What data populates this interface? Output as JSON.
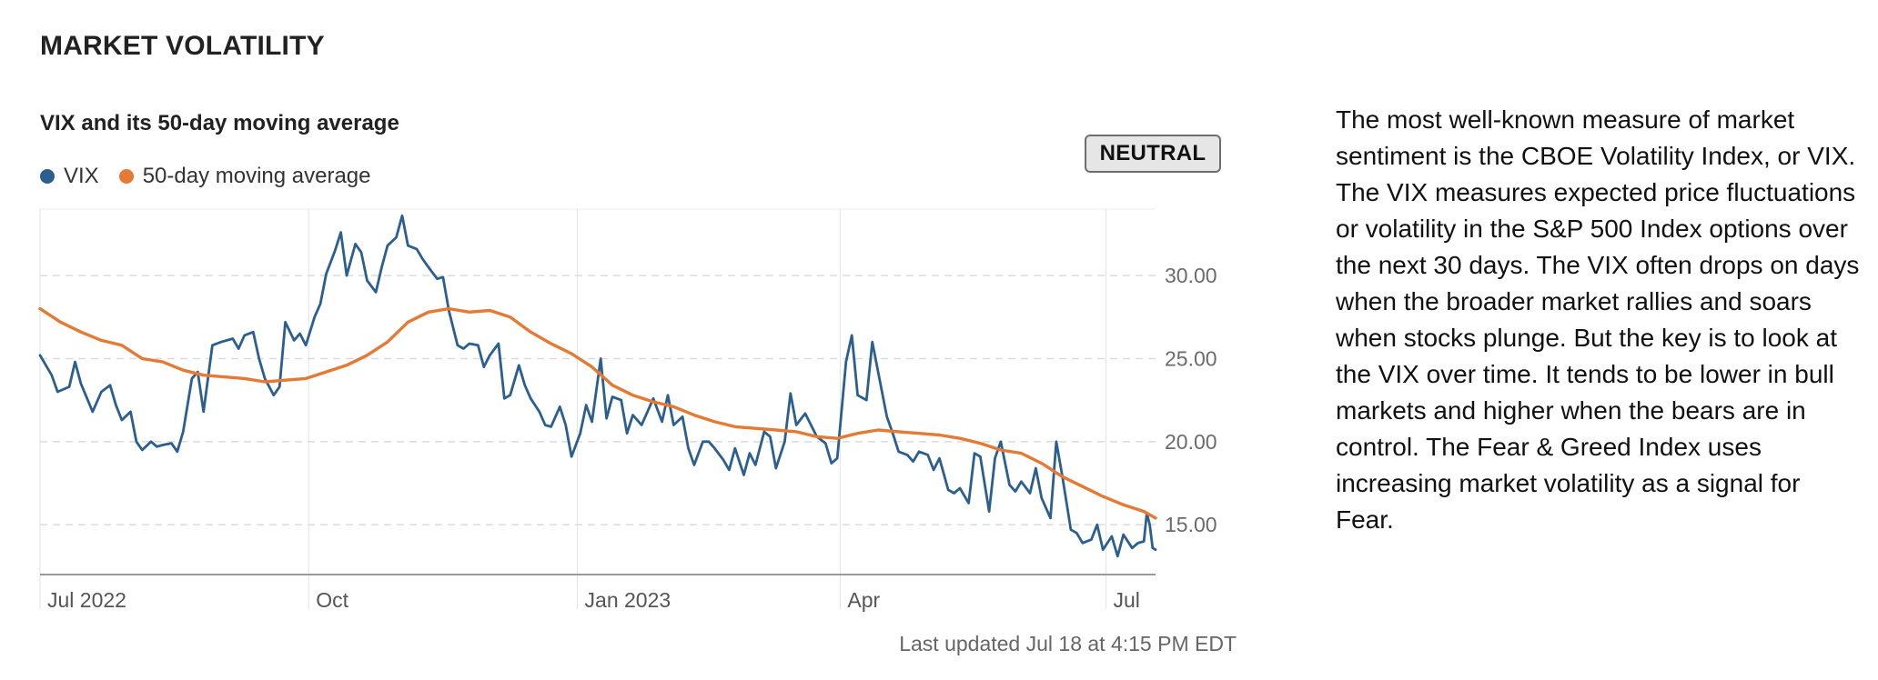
{
  "header": {
    "title": "MARKET VOLATILITY"
  },
  "chart_header": {
    "title": "VIX and its 50-day moving average",
    "badge": "NEUTRAL"
  },
  "legend": {
    "items": [
      {
        "label": "VIX",
        "color": "#2b5f8f"
      },
      {
        "label": "50-day moving average",
        "color": "#e47a34"
      }
    ]
  },
  "footer": {
    "updated": "Last updated Jul 18 at 4:15 PM EDT"
  },
  "description": "The most well-known measure of market sentiment is the CBOE Volatility Index, or VIX. The VIX measures expected price fluctuations or volatility in the S&P 500 Index options over the next 30 days. The VIX often drops on days when the broader market rallies and soars when stocks plunge. But the key is to look at the VIX over time. It tends to be lower in bull markets and higher when the bears are in control. The Fear & Greed Index uses increasing market volatility as a signal for Fear.",
  "chart_data": {
    "type": "line",
    "title": "VIX and its 50-day moving average",
    "x_ticks": [
      "Jul 2022",
      "Oct",
      "Jan 2023",
      "Apr",
      "Jul"
    ],
    "y_ticks": [
      "30.00",
      "25.00",
      "20.00",
      "15.00"
    ],
    "xlim": [
      "2022-07-01",
      "2023-07-18"
    ],
    "ylim": [
      12,
      34
    ],
    "grid": true,
    "legend_position": "top-left",
    "series": [
      {
        "name": "VIX",
        "color": "#2b5f8f",
        "points": [
          [
            "2022-07-01",
            25.2
          ],
          [
            "2022-07-05",
            24.0
          ],
          [
            "2022-07-07",
            23.0
          ],
          [
            "2022-07-11",
            23.3
          ],
          [
            "2022-07-13",
            24.8
          ],
          [
            "2022-07-15",
            23.5
          ],
          [
            "2022-07-19",
            21.8
          ],
          [
            "2022-07-22",
            23.0
          ],
          [
            "2022-07-25",
            23.4
          ],
          [
            "2022-07-27",
            22.2
          ],
          [
            "2022-07-29",
            21.3
          ],
          [
            "2022-08-01",
            21.8
          ],
          [
            "2022-08-03",
            20.0
          ],
          [
            "2022-08-05",
            19.5
          ],
          [
            "2022-08-08",
            20.0
          ],
          [
            "2022-08-10",
            19.7
          ],
          [
            "2022-08-12",
            19.8
          ],
          [
            "2022-08-15",
            19.9
          ],
          [
            "2022-08-17",
            19.4
          ],
          [
            "2022-08-19",
            20.6
          ],
          [
            "2022-08-22",
            23.8
          ],
          [
            "2022-08-24",
            24.2
          ],
          [
            "2022-08-26",
            21.8
          ],
          [
            "2022-08-29",
            25.8
          ],
          [
            "2022-09-01",
            26.0
          ],
          [
            "2022-09-05",
            26.2
          ],
          [
            "2022-09-07",
            25.6
          ],
          [
            "2022-09-09",
            26.4
          ],
          [
            "2022-09-12",
            26.6
          ],
          [
            "2022-09-14",
            25.0
          ],
          [
            "2022-09-16",
            23.8
          ],
          [
            "2022-09-19",
            22.8
          ],
          [
            "2022-09-21",
            23.3
          ],
          [
            "2022-09-23",
            27.2
          ],
          [
            "2022-09-26",
            26.1
          ],
          [
            "2022-09-28",
            26.5
          ],
          [
            "2022-09-30",
            25.8
          ],
          [
            "2022-10-03",
            27.5
          ],
          [
            "2022-10-05",
            28.3
          ],
          [
            "2022-10-07",
            30.1
          ],
          [
            "2022-10-10",
            31.5
          ],
          [
            "2022-10-12",
            32.6
          ],
          [
            "2022-10-14",
            30.0
          ],
          [
            "2022-10-17",
            31.9
          ],
          [
            "2022-10-19",
            31.4
          ],
          [
            "2022-10-21",
            29.7
          ],
          [
            "2022-10-24",
            29.0
          ],
          [
            "2022-10-26",
            30.5
          ],
          [
            "2022-10-28",
            31.8
          ],
          [
            "2022-10-31",
            32.3
          ],
          [
            "2022-11-02",
            33.6
          ],
          [
            "2022-11-04",
            31.8
          ],
          [
            "2022-11-07",
            31.6
          ],
          [
            "2022-11-09",
            31.0
          ],
          [
            "2022-11-11",
            30.5
          ],
          [
            "2022-11-14",
            29.8
          ],
          [
            "2022-11-16",
            29.9
          ],
          [
            "2022-11-18",
            27.9
          ],
          [
            "2022-11-21",
            25.8
          ],
          [
            "2022-11-23",
            25.6
          ],
          [
            "2022-11-25",
            25.9
          ],
          [
            "2022-11-28",
            25.8
          ],
          [
            "2022-11-30",
            24.5
          ],
          [
            "2022-12-02",
            25.2
          ],
          [
            "2022-12-05",
            25.9
          ],
          [
            "2022-12-07",
            22.6
          ],
          [
            "2022-12-09",
            22.8
          ],
          [
            "2022-12-12",
            24.6
          ],
          [
            "2022-12-14",
            23.4
          ],
          [
            "2022-12-16",
            22.6
          ],
          [
            "2022-12-19",
            21.8
          ],
          [
            "2022-12-21",
            21.0
          ],
          [
            "2022-12-23",
            20.9
          ],
          [
            "2022-12-26",
            22.1
          ],
          [
            "2022-12-28",
            21.0
          ],
          [
            "2022-12-30",
            19.1
          ],
          [
            "2023-01-02",
            20.5
          ],
          [
            "2023-01-04",
            22.2
          ],
          [
            "2023-01-06",
            21.2
          ],
          [
            "2023-01-09",
            25.0
          ],
          [
            "2023-01-11",
            21.4
          ],
          [
            "2023-01-13",
            22.7
          ],
          [
            "2023-01-16",
            22.5
          ],
          [
            "2023-01-18",
            20.5
          ],
          [
            "2023-01-20",
            21.6
          ],
          [
            "2023-01-23",
            21.0
          ],
          [
            "2023-01-25",
            21.8
          ],
          [
            "2023-01-27",
            22.6
          ],
          [
            "2023-01-30",
            21.2
          ],
          [
            "2023-02-01",
            22.8
          ],
          [
            "2023-02-03",
            21.0
          ],
          [
            "2023-02-06",
            21.5
          ],
          [
            "2023-02-08",
            19.6
          ],
          [
            "2023-02-10",
            18.6
          ],
          [
            "2023-02-13",
            20.0
          ],
          [
            "2023-02-15",
            20.0
          ],
          [
            "2023-02-17",
            19.6
          ],
          [
            "2023-02-20",
            18.9
          ],
          [
            "2023-02-22",
            18.3
          ],
          [
            "2023-02-24",
            19.6
          ],
          [
            "2023-02-27",
            18.0
          ],
          [
            "2023-03-01",
            19.3
          ],
          [
            "2023-03-03",
            18.6
          ],
          [
            "2023-03-06",
            20.6
          ],
          [
            "2023-03-08",
            20.3
          ],
          [
            "2023-03-10",
            18.4
          ],
          [
            "2023-03-13",
            20.0
          ],
          [
            "2023-03-15",
            22.9
          ],
          [
            "2023-03-17",
            21.0
          ],
          [
            "2023-03-20",
            21.7
          ],
          [
            "2023-03-22",
            21.0
          ],
          [
            "2023-03-24",
            20.3
          ],
          [
            "2023-03-27",
            19.9
          ],
          [
            "2023-03-29",
            18.7
          ],
          [
            "2023-03-31",
            19.0
          ],
          [
            "2023-04-03",
            24.8
          ],
          [
            "2023-04-05",
            26.4
          ],
          [
            "2023-04-07",
            22.8
          ],
          [
            "2023-04-10",
            22.5
          ],
          [
            "2023-04-12",
            26.0
          ],
          [
            "2023-04-14",
            24.2
          ],
          [
            "2023-04-17",
            21.5
          ],
          [
            "2023-04-19",
            20.5
          ],
          [
            "2023-04-21",
            19.4
          ],
          [
            "2023-04-24",
            19.2
          ],
          [
            "2023-04-26",
            18.8
          ],
          [
            "2023-04-28",
            19.4
          ],
          [
            "2023-05-01",
            19.2
          ],
          [
            "2023-05-03",
            18.3
          ],
          [
            "2023-05-05",
            19.0
          ],
          [
            "2023-05-08",
            17.1
          ],
          [
            "2023-05-10",
            16.9
          ],
          [
            "2023-05-12",
            17.2
          ],
          [
            "2023-05-15",
            16.3
          ],
          [
            "2023-05-17",
            19.3
          ],
          [
            "2023-05-19",
            19.1
          ],
          [
            "2023-05-22",
            15.8
          ],
          [
            "2023-05-24",
            19.0
          ],
          [
            "2023-05-26",
            20.0
          ],
          [
            "2023-05-29",
            17.4
          ],
          [
            "2023-05-31",
            17.0
          ],
          [
            "2023-06-02",
            17.6
          ],
          [
            "2023-06-05",
            16.9
          ],
          [
            "2023-06-07",
            18.4
          ],
          [
            "2023-06-09",
            16.6
          ],
          [
            "2023-06-12",
            15.4
          ],
          [
            "2023-06-14",
            20.0
          ],
          [
            "2023-06-16",
            18.0
          ],
          [
            "2023-06-19",
            14.7
          ],
          [
            "2023-06-21",
            14.5
          ],
          [
            "2023-06-23",
            13.9
          ],
          [
            "2023-06-26",
            14.1
          ],
          [
            "2023-06-28",
            15.0
          ],
          [
            "2023-06-30",
            13.5
          ],
          [
            "2023-07-03",
            14.3
          ],
          [
            "2023-07-05",
            13.1
          ],
          [
            "2023-07-07",
            14.4
          ],
          [
            "2023-07-10",
            13.6
          ],
          [
            "2023-07-12",
            13.9
          ],
          [
            "2023-07-14",
            14.0
          ],
          [
            "2023-07-15",
            15.7
          ],
          [
            "2023-07-16",
            15.0
          ],
          [
            "2023-07-17",
            13.6
          ],
          [
            "2023-07-18",
            13.5
          ]
        ]
      },
      {
        "name": "50-day moving average",
        "color": "#e47a34",
        "points": [
          [
            "2022-07-01",
            28.0
          ],
          [
            "2022-07-08",
            27.2
          ],
          [
            "2022-07-15",
            26.6
          ],
          [
            "2022-07-22",
            26.1
          ],
          [
            "2022-07-29",
            25.8
          ],
          [
            "2022-08-05",
            25.0
          ],
          [
            "2022-08-12",
            24.8
          ],
          [
            "2022-08-19",
            24.3
          ],
          [
            "2022-08-26",
            24.0
          ],
          [
            "2022-09-02",
            23.9
          ],
          [
            "2022-09-09",
            23.8
          ],
          [
            "2022-09-16",
            23.6
          ],
          [
            "2022-09-23",
            23.7
          ],
          [
            "2022-09-30",
            23.8
          ],
          [
            "2022-10-07",
            24.2
          ],
          [
            "2022-10-14",
            24.6
          ],
          [
            "2022-10-21",
            25.2
          ],
          [
            "2022-10-28",
            26.0
          ],
          [
            "2022-11-04",
            27.2
          ],
          [
            "2022-11-11",
            27.8
          ],
          [
            "2022-11-18",
            28.0
          ],
          [
            "2022-11-25",
            27.8
          ],
          [
            "2022-12-02",
            27.9
          ],
          [
            "2022-12-09",
            27.5
          ],
          [
            "2022-12-16",
            26.6
          ],
          [
            "2022-12-23",
            25.9
          ],
          [
            "2022-12-30",
            25.3
          ],
          [
            "2023-01-06",
            24.5
          ],
          [
            "2023-01-13",
            23.4
          ],
          [
            "2023-01-20",
            22.8
          ],
          [
            "2023-01-27",
            22.4
          ],
          [
            "2023-02-03",
            22.1
          ],
          [
            "2023-02-10",
            21.6
          ],
          [
            "2023-02-17",
            21.2
          ],
          [
            "2023-02-24",
            20.9
          ],
          [
            "2023-03-03",
            20.8
          ],
          [
            "2023-03-10",
            20.7
          ],
          [
            "2023-03-17",
            20.6
          ],
          [
            "2023-03-24",
            20.3
          ],
          [
            "2023-03-31",
            20.2
          ],
          [
            "2023-04-07",
            20.5
          ],
          [
            "2023-04-14",
            20.7
          ],
          [
            "2023-04-21",
            20.6
          ],
          [
            "2023-04-28",
            20.5
          ],
          [
            "2023-05-05",
            20.4
          ],
          [
            "2023-05-12",
            20.2
          ],
          [
            "2023-05-19",
            19.9
          ],
          [
            "2023-05-26",
            19.5
          ],
          [
            "2023-06-02",
            19.3
          ],
          [
            "2023-06-09",
            18.7
          ],
          [
            "2023-06-16",
            17.9
          ],
          [
            "2023-06-23",
            17.3
          ],
          [
            "2023-06-30",
            16.7
          ],
          [
            "2023-07-07",
            16.2
          ],
          [
            "2023-07-14",
            15.8
          ],
          [
            "2023-07-18",
            15.4
          ]
        ]
      }
    ]
  }
}
